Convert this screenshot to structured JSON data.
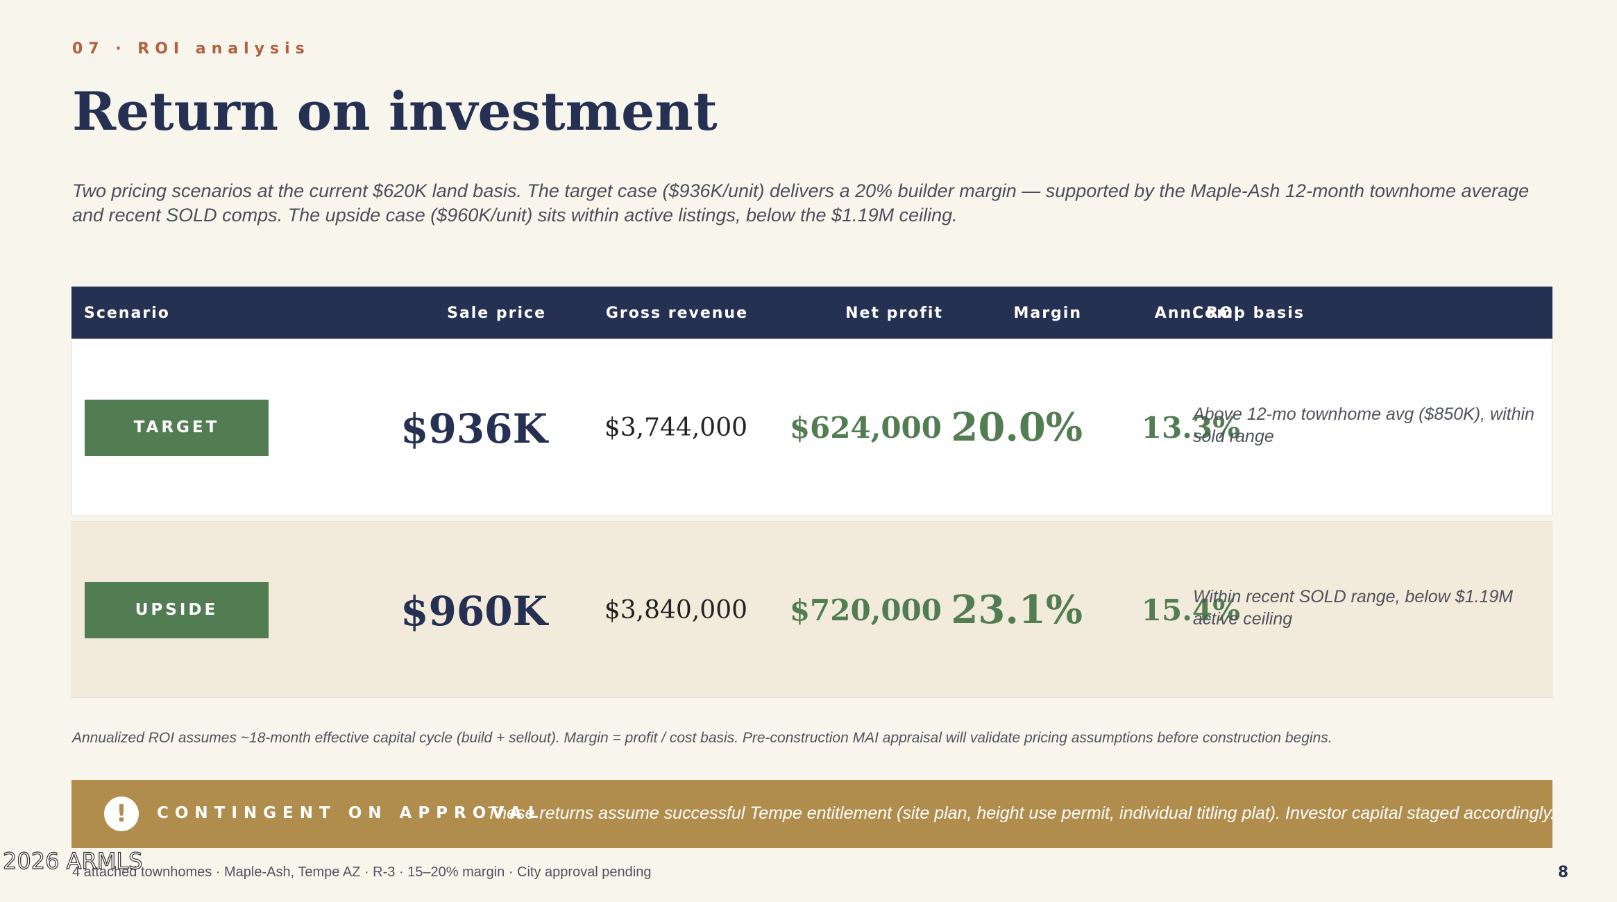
{
  "header": {
    "eyebrow": "07 · ROI analysis",
    "title": "Return on investment",
    "intro": "Two pricing scenarios at the current $620K land basis. The target case ($936K/unit) delivers a 20% builder margin — supported by the Maple-Ash 12-month townhome average and recent SOLD comps. The upside case ($960K/unit) sits within active listings, below the $1.19M ceiling."
  },
  "table": {
    "columns": {
      "scenario": "Scenario",
      "sale_price": "Sale price",
      "gross_revenue": "Gross revenue",
      "net_profit": "Net profit",
      "margin": "Margin",
      "ann_roi": "Ann. ROI",
      "comp_basis": "Comp basis"
    },
    "rows": [
      {
        "scenario": "TARGET",
        "sale_price": "$936K",
        "gross_revenue": "$3,744,000",
        "net_profit": "$624,000",
        "margin": "20.0%",
        "ann_roi": "13.3%",
        "comp_basis": "Above 12-mo townhome avg ($850K), within sold range"
      },
      {
        "scenario": "UPSIDE",
        "sale_price": "$960K",
        "gross_revenue": "$3,840,000",
        "net_profit": "$720,000",
        "margin": "23.1%",
        "ann_roi": "15.4%",
        "comp_basis": "Within recent SOLD range, below $1.19M active ceiling"
      }
    ]
  },
  "footnote": "Annualized ROI assumes ~18-month effective capital cycle (build + sellout). Margin = profit / cost basis. Pre-construction MAI appraisal will validate pricing assumptions before construction begins.",
  "banner": {
    "icon": "exclamation-icon",
    "icon_glyph": "!",
    "label": "CONTINGENT ON APPROVAL",
    "text": "These returns assume successful Tempe entitlement (site plan, height use permit, individual titling plat). Investor capital staged accordingly."
  },
  "watermark": "2026 ARMLS",
  "footer": {
    "text": "4 attached townhomes · Maple-Ash, Tempe AZ · R-3 · 15–20% margin · City approval pending",
    "page_number": "8"
  },
  "colors": {
    "navy": "#253052",
    "green": "#527c52",
    "gold": "#b08d4d",
    "accent": "#b2603e",
    "background": "#f8f6ec"
  }
}
